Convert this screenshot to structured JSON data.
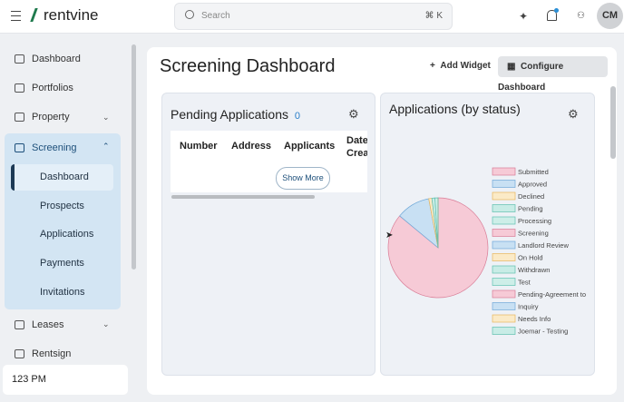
{
  "header": {
    "brand": "rentvine",
    "search_placeholder": "Search",
    "search_shortcut": "⌘ K",
    "avatar": "CM"
  },
  "sidebar": {
    "items": [
      "Dashboard",
      "Portfolios",
      "Property",
      "Screening"
    ],
    "screening_items": [
      "Dashboard",
      "Prospects",
      "Applications",
      "Payments",
      "Invitations"
    ],
    "more_items": [
      "Leases",
      "Rentsign"
    ],
    "footer": "123 PM"
  },
  "page": {
    "title": "Screening Dashboard",
    "add_widget": "Add Widget",
    "configure": "Configure Dashboard"
  },
  "pending_widget": {
    "title": "Pending Applications",
    "count": 0,
    "columns": [
      "Number",
      "Address",
      "Applicants",
      "Date Crea"
    ],
    "show_more": "Show More"
  },
  "chart_data": {
    "type": "pie",
    "title": "Applications (by status)",
    "categories": [
      "Submitted",
      "Approved",
      "Declined",
      "Pending",
      "Processing",
      "Screening",
      "Landlord Review",
      "On Hold",
      "Withdrawn",
      "Test",
      "Pending-Agreement to",
      "Inquiry",
      "Needs Info",
      "Joemar - Testing"
    ],
    "values": [
      86,
      11,
      1,
      1,
      1,
      0,
      0,
      0,
      0,
      0,
      0,
      0,
      0,
      0
    ],
    "colors": [
      "#f6cad6",
      "#c8e0f3",
      "#fbeac7",
      "#c8ece6",
      "#cdeee8",
      "#f6cad6",
      "#c8e0f3",
      "#fbeac7",
      "#c8ece6",
      "#cdeee8",
      "#f6cad6",
      "#c8e0f3",
      "#fbeac7",
      "#c8ece6"
    ],
    "stroke_colors": [
      "#d97c96",
      "#6fa8d8",
      "#e8b65c",
      "#5fbfae",
      "#62c2b2",
      "#d97c96",
      "#6fa8d8",
      "#e8b65c",
      "#5fbfae",
      "#62c2b2",
      "#d97c96",
      "#6fa8d8",
      "#e8b65c",
      "#5fbfae"
    ]
  }
}
